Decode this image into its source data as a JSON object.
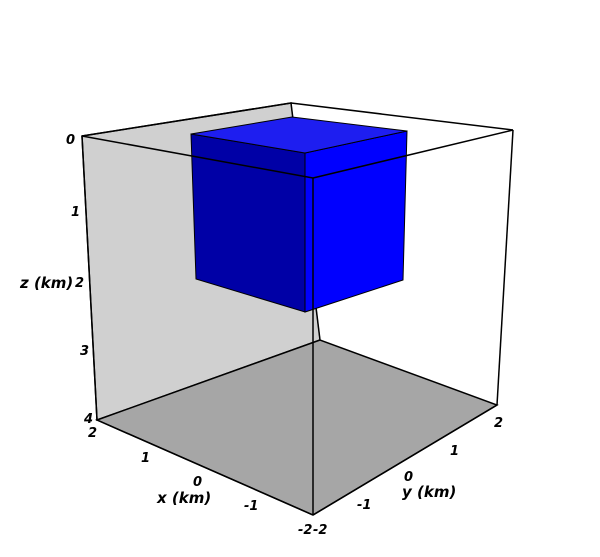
{
  "axes": {
    "z": {
      "label": "z (km)",
      "ticks": [
        "0",
        "1",
        "2",
        "3",
        "4"
      ]
    },
    "x": {
      "label": "x (km)",
      "ticks": [
        "2",
        "1",
        "0",
        "-1",
        "-2"
      ]
    },
    "y": {
      "label": "y (km)",
      "ticks": [
        "-2",
        "-1",
        "0",
        "1",
        "2"
      ]
    }
  },
  "colors": {
    "left_wall": "#d0d0d0",
    "floor": "#a6a6a6",
    "cube_top": "#1e1ef0",
    "cube_left": "#0000a6",
    "cube_right": "#0000ff",
    "edge": "#000000"
  }
}
